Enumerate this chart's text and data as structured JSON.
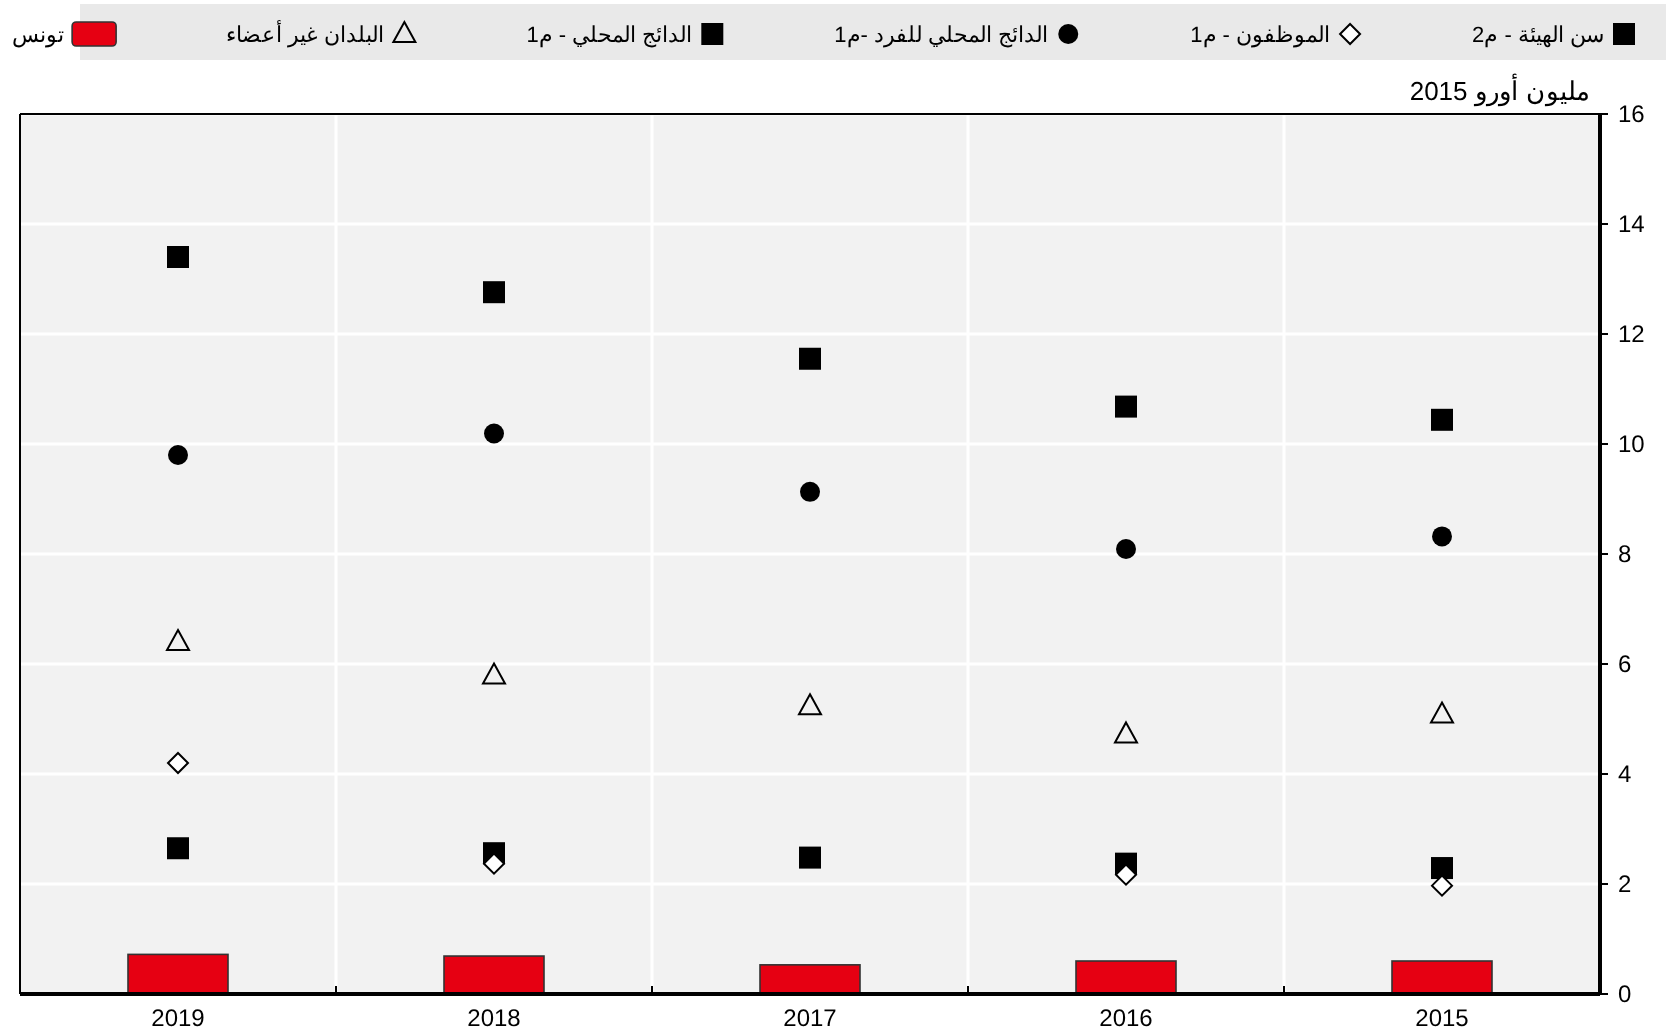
{
  "chart_data": {
    "type": "scatter",
    "ylabel": "مليون أورو 2015",
    "categories": [
      "2019",
      "2018",
      "2017",
      "2016",
      "2015"
    ],
    "series": [
      {
        "name": "سن الهيئة - م2",
        "color": "#000000",
        "marker": "square",
        "values": [
          2.65,
          2.56,
          2.48,
          2.37,
          2.29
        ]
      },
      {
        "name": "الموظفون - م1",
        "color": "#000000",
        "marker": "diamond",
        "values": [
          4.2,
          2.37,
          null,
          2.17,
          1.97
        ]
      },
      {
        "name": "الدائج المحلي للفرد -م1",
        "color": "#000000",
        "marker": "circle",
        "values": [
          9.8,
          10.19,
          9.13,
          8.09,
          8.32
        ]
      },
      {
        "name": "الدائج المحلي - م1",
        "color": "#000000",
        "marker": "square",
        "values": [
          13.4,
          12.76,
          11.55,
          10.68,
          10.44
        ]
      },
      {
        "name": "البلدان غير أعضاء",
        "color": "#000000",
        "marker": "triangle",
        "values": [
          6.4,
          5.79,
          5.23,
          4.72,
          5.08
        ]
      },
      {
        "name": "تونس",
        "type": "bar",
        "color": "#e60012",
        "values": [
          0.72,
          0.69,
          0.53,
          0.6,
          0.6
        ]
      }
    ],
    "ylim": [
      0,
      16
    ],
    "yticks": [
      0,
      2,
      4,
      6,
      8,
      10,
      12,
      14,
      16
    ],
    "grid": true,
    "legend": "top"
  }
}
